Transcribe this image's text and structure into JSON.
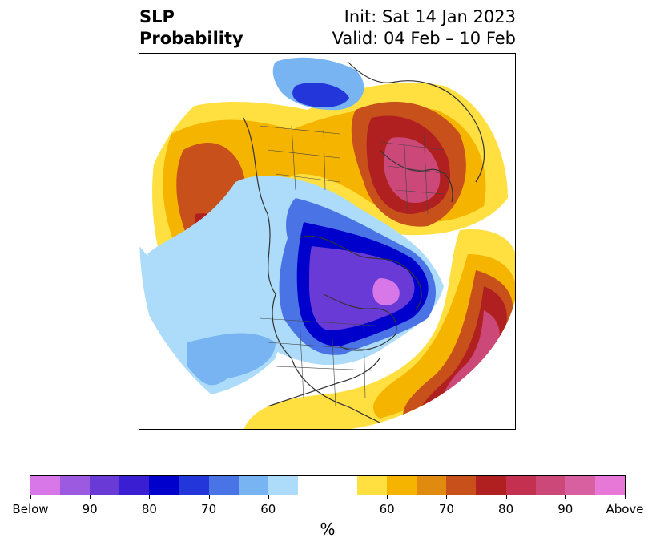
{
  "title": {
    "left_line1": "SLP",
    "left_line2": "Probability",
    "right_line1": "Init: Sat 14 Jan 2023",
    "right_line2": "Valid: 04 Feb – 10 Feb"
  },
  "colorbar": {
    "label": "%",
    "colors": [
      "#d878e8",
      "#9c5ae0",
      "#6a3ad6",
      "#3a1ed2",
      "#0000cc",
      "#2236da",
      "#4a74e6",
      "#78b4f2",
      "#acdcfa",
      "#ffffff",
      "#ffffff",
      "#ffe040",
      "#f4b400",
      "#e08a10",
      "#c8501a",
      "#b02020",
      "#c43050",
      "#cc4878",
      "#d860a0",
      "#e878d8"
    ],
    "ticks": [
      "Below",
      "90",
      "80",
      "70",
      "60",
      "60",
      "70",
      "80",
      "90",
      "Above"
    ]
  },
  "colors": {
    "below_strong": "#8a4ae6",
    "below_mid": "#2a2ae0",
    "below_light": "#acdcfa",
    "above_light": "#ffe040",
    "above_mid": "#c8501a",
    "above_strong": "#b02020",
    "above_max": "#cc4878"
  }
}
